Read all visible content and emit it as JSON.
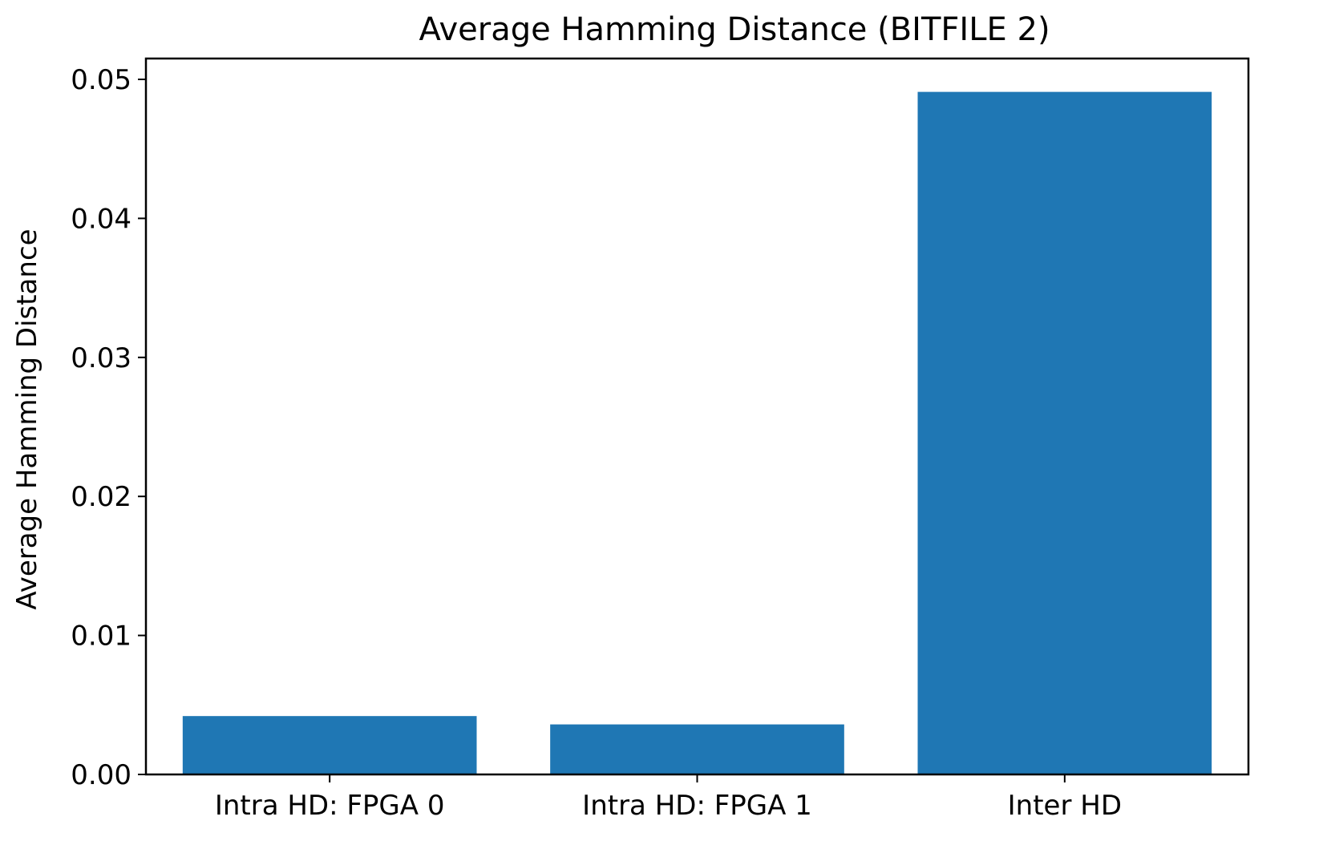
{
  "chart_data": {
    "type": "bar",
    "title": "Average Hamming Distance (BITFILE 2)",
    "xlabel": "",
    "ylabel": "Average Hamming Distance",
    "categories": [
      "Intra HD: FPGA 0",
      "Intra HD: FPGA 1",
      "Inter HD"
    ],
    "values": [
      0.0042,
      0.0036,
      0.0491
    ],
    "ylim": [
      0,
      0.0515
    ],
    "yticks": [
      "0.00",
      "0.01",
      "0.02",
      "0.03",
      "0.04",
      "0.05"
    ],
    "grid": false,
    "legend": "none",
    "bar_color": "#1f77b4"
  }
}
